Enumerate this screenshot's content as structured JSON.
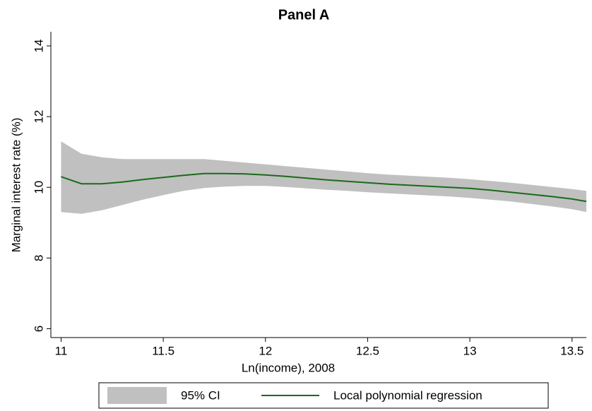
{
  "chart_data": {
    "type": "line",
    "title": "Panel A",
    "x_label": "Ln(income), 2008",
    "y_label": "Marginal interest rate (%)",
    "x": [
      11,
      11.1,
      11.2,
      11.3,
      11.4,
      11.5,
      11.6,
      11.7,
      11.8,
      11.9,
      12,
      12.1,
      12.2,
      12.3,
      12.4,
      12.5,
      12.6,
      12.7,
      12.8,
      12.9,
      13,
      13.1,
      13.2,
      13.3,
      13.4,
      13.5,
      13.57
    ],
    "series": [
      {
        "name": "95% CI",
        "color": "#c0c0c0",
        "upper": [
          11.3,
          10.95,
          10.85,
          10.8,
          10.8,
          10.8,
          10.8,
          10.8,
          10.75,
          10.7,
          10.65,
          10.6,
          10.55,
          10.5,
          10.45,
          10.4,
          10.36,
          10.33,
          10.3,
          10.27,
          10.23,
          10.18,
          10.13,
          10.07,
          10.01,
          9.95,
          9.9
        ],
        "lower": [
          9.3,
          9.25,
          9.35,
          9.5,
          9.65,
          9.78,
          9.9,
          9.98,
          10.02,
          10.04,
          10.04,
          10.01,
          9.97,
          9.93,
          9.9,
          9.86,
          9.83,
          9.8,
          9.77,
          9.74,
          9.7,
          9.65,
          9.6,
          9.53,
          9.46,
          9.38,
          9.3
        ]
      },
      {
        "name": "Local polynomial regression",
        "color": "#1a6b1a",
        "values": [
          10.3,
          10.1,
          10.1,
          10.15,
          10.22,
          10.28,
          10.34,
          10.39,
          10.39,
          10.38,
          10.35,
          10.31,
          10.26,
          10.21,
          10.17,
          10.13,
          10.09,
          10.06,
          10.03,
          10.0,
          9.97,
          9.92,
          9.86,
          9.8,
          9.74,
          9.67,
          9.6
        ]
      }
    ],
    "xlim": [
      10.95,
      13.57
    ],
    "ylim": [
      5.75,
      14.4
    ],
    "xticks": [
      11,
      11.5,
      12,
      12.5,
      13,
      13.5
    ],
    "yticks": [
      6,
      8,
      10,
      12,
      14
    ],
    "grid": false,
    "legend": "bottom"
  }
}
